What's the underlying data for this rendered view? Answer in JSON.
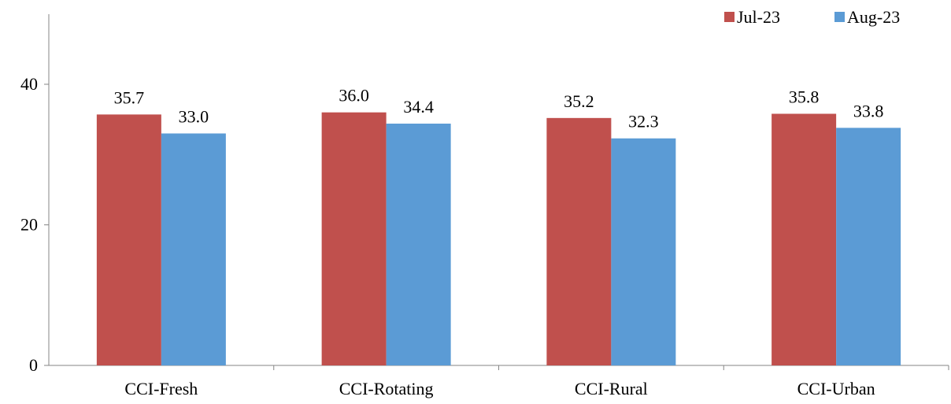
{
  "chart_data": {
    "type": "bar",
    "categories": [
      "CCI-Fresh",
      "CCI-Rotating",
      "CCI-Rural",
      "CCI-Urban"
    ],
    "series": [
      {
        "name": "Jul-23",
        "color": "#c0504d",
        "values": [
          35.7,
          36.0,
          35.2,
          35.8
        ]
      },
      {
        "name": "Aug-23",
        "color": "#5b9bd5",
        "values": [
          33.0,
          34.4,
          32.3,
          33.8
        ]
      }
    ],
    "data_labels": [
      [
        "35.7",
        "36.0",
        "35.2",
        "35.8"
      ],
      [
        "33.0",
        "34.4",
        "32.3",
        "33.8"
      ]
    ],
    "ylim": [
      0,
      40
    ],
    "y_ticks": [
      0,
      20,
      40
    ],
    "grid": false,
    "legend_position": "top-right",
    "title": "",
    "xlabel": "",
    "ylabel": ""
  }
}
